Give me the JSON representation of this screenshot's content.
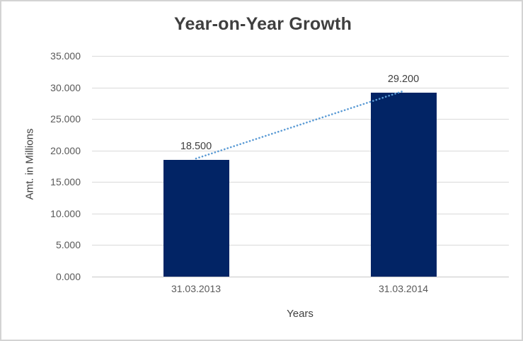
{
  "chart_data": {
    "type": "bar",
    "title": "Year-on-Year Growth",
    "categories": [
      "31.03.2013",
      "31.03.2014"
    ],
    "values": [
      18.5,
      29.2
    ],
    "data_labels": [
      "18.500",
      "29.200"
    ],
    "xlabel": "Years",
    "ylabel": "Amt. in Millions",
    "ylim": [
      0,
      35
    ],
    "ytick_step": 5,
    "yticks": [
      "0.000",
      "5.000",
      "10.000",
      "15.000",
      "20.000",
      "25.000",
      "30.000",
      "35.000"
    ],
    "grid": true,
    "legend": "none",
    "trendline": {
      "style": "dotted",
      "connects": [
        "bar-top-31.03.2013",
        "bar-top-31.03.2014"
      ],
      "color": "#5b9bd5"
    },
    "colors": {
      "bar": "#022465",
      "trendline": "#5b9bd5",
      "gridline": "#d9d9d9",
      "tick_text": "#595959",
      "title_text": "#3f3f3f",
      "border": "#d3d3d3"
    }
  }
}
